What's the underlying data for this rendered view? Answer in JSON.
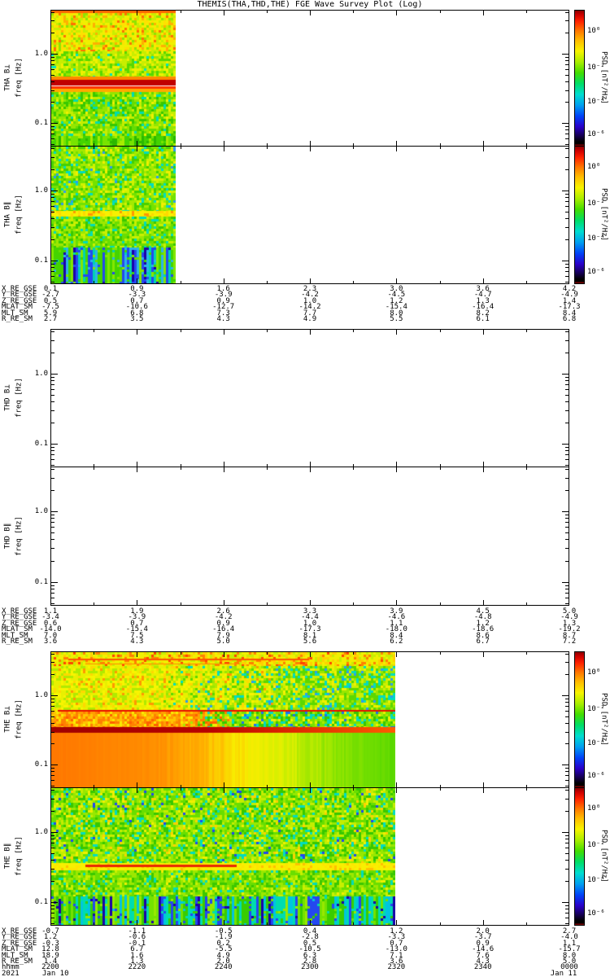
{
  "chart_data": {
    "type": "spectrogram",
    "title": "THEMIS(THA,THD,THE) FGE Wave Survey Plot (Log)",
    "ylabel": "freq [Hz]",
    "yscale": "log",
    "ylim": [
      0.047,
      4.2
    ],
    "ytick_major": [
      {
        "label": "1.0",
        "freq": 1.0
      },
      {
        "label": "0.1",
        "freq": 0.1
      }
    ],
    "ytick_minor_freqs": [
      4,
      3,
      2,
      0.9,
      0.8,
      0.7,
      0.6,
      0.5,
      0.4,
      0.3,
      0.2,
      0.09,
      0.08,
      0.07,
      0.06,
      0.05
    ],
    "colorbar": {
      "label": "PSD [nT²/Hz]",
      "ticks": [
        "10⁰",
        "10⁻²",
        "10⁻⁴",
        "10⁻⁶"
      ]
    },
    "panels": [
      {
        "id": "tha-bperp",
        "label": "THA B⊥",
        "ylabel": "freq [Hz]",
        "data_extent": 0.241,
        "colorbar": true,
        "zones": [
          {
            "y0": 0.0,
            "y1": 0.3,
            "type": "speckle",
            "colors": [
              "#f0f000",
              "#ffe000",
              "#c8ee00",
              "#ffb000",
              "#90e400",
              "#ff7000"
            ],
            "weights": [
              30,
              20,
              20,
              12,
              12,
              6
            ]
          },
          {
            "y0": 0.3,
            "y1": 0.49,
            "type": "speckle",
            "colors": [
              "#c8ee00",
              "#9ae600",
              "#f0f000",
              "#58d800",
              "#00e4c0"
            ],
            "weights": [
              28,
              26,
              22,
              18,
              6
            ]
          },
          {
            "y0": 0.6,
            "y1": 0.93,
            "type": "speckle",
            "colors": [
              "#66dc00",
              "#94e600",
              "#c4ee00",
              "#38c800",
              "#00dcb0",
              "#f0f000"
            ],
            "weights": [
              24,
              22,
              20,
              18,
              10,
              6
            ]
          },
          {
            "y0": 0.93,
            "y1": 1.0,
            "type": "stripes",
            "colors": [
              "#44d400",
              "#78e400",
              "#a8ec00",
              "#2cb800"
            ],
            "weights": [
              30,
              30,
              20,
              20
            ]
          }
        ],
        "features": [
          {
            "type": "hline",
            "y": 0.0,
            "h": 0.018,
            "x0": 0,
            "x1": 1,
            "color": "#ff6600"
          },
          {
            "type": "hline",
            "y": 0.49,
            "h": 0.028,
            "x0": 0,
            "x1": 1,
            "color": "#ff8800"
          },
          {
            "type": "hline",
            "y": 0.515,
            "h": 0.045,
            "x0": 0,
            "x1": 1,
            "color": "#c00000"
          },
          {
            "type": "hline",
            "y": 0.558,
            "h": 0.018,
            "x0": 0,
            "x1": 1,
            "color": "#ff3300"
          },
          {
            "type": "hline",
            "y": 0.576,
            "h": 0.026,
            "x0": 0,
            "x1": 1,
            "color": "#ffaa00"
          }
        ]
      },
      {
        "id": "tha-bpar",
        "label": "THA B∥",
        "ylabel": "freq [Hz]",
        "data_extent": 0.241,
        "colorbar": true,
        "zones": [
          {
            "y0": 0.0,
            "y1": 0.47,
            "type": "speckle",
            "colors": [
              "#74e200",
              "#a4ea00",
              "#d0f200",
              "#46d000",
              "#00dcc0",
              "#f0f000",
              "#2c9cf0"
            ],
            "weights": [
              24,
              24,
              16,
              18,
              10,
              6,
              2
            ]
          },
          {
            "y0": 0.47,
            "y1": 0.51,
            "type": "speckle",
            "colors": [
              "#f8f000",
              "#ffd800",
              "#ff9800"
            ],
            "weights": [
              62,
              24,
              14
            ]
          },
          {
            "y0": 0.51,
            "y1": 0.74,
            "type": "speckle",
            "colors": [
              "#6ade00",
              "#9ce800",
              "#c8f000",
              "#3cc800",
              "#00dcb8"
            ],
            "weights": [
              26,
              24,
              18,
              22,
              10
            ]
          },
          {
            "y0": 0.74,
            "y1": 1.0,
            "type": "stripes",
            "colors": [
              "#2cb4e8",
              "#2448f0",
              "#44d400",
              "#00d4b0",
              "#84e600",
              "#1c00a8",
              "#68dc00"
            ],
            "weights": [
              14,
              18,
              24,
              12,
              14,
              8,
              10
            ]
          }
        ],
        "features": []
      },
      {
        "id": "thd-bperp",
        "label": "THD B⊥",
        "ylabel": "freq [Hz]",
        "data_extent": 0,
        "colorbar": false,
        "zones": [],
        "features": []
      },
      {
        "id": "thd-bpar",
        "label": "THD B∥",
        "ylabel": "freq [Hz]",
        "data_extent": 0,
        "colorbar": false,
        "zones": [],
        "features": []
      },
      {
        "id": "the-bperp",
        "label": "THE B⊥",
        "ylabel": "freq [Hz]",
        "data_extent": 0.665,
        "colorbar": true,
        "zones": [
          {
            "y0": 0.0,
            "y1": 0.1,
            "type": "speckle",
            "colors": [
              "#f0f000",
              "#ffd000",
              "#c8ee00",
              "#ff8000",
              "#ff4400"
            ],
            "weights": [
              40,
              24,
              18,
              12,
              6
            ]
          },
          {
            "y0": 0.1,
            "y1": 0.44,
            "type": "speckle",
            "colors": [
              "#e8f000",
              "#f8f400",
              "#b0ea00",
              "#ffd800",
              "#ff9800"
            ],
            "weights": [
              30,
              24,
              26,
              14,
              6
            ],
            "colors2": [
              "#5cd800",
              "#9ae600",
              "#00dcc0",
              "#ccf000",
              "#f0f000",
              "#2c9cf0"
            ],
            "weights2": [
              28,
              24,
              14,
              20,
              10,
              4
            ],
            "blend": [
              0.3,
              0.75
            ]
          },
          {
            "y0": 0.44,
            "y1": 0.556,
            "type": "speckle",
            "colors": [
              "#ffa000",
              "#ff8000",
              "#ffc400",
              "#f8ec00",
              "#ff6000"
            ],
            "weights": [
              30,
              24,
              22,
              16,
              8
            ],
            "colors2": [
              "#78e200",
              "#a8ea00",
              "#00dcc0",
              "#f0f000",
              "#38c800",
              "#1c70f0"
            ],
            "weights2": [
              26,
              22,
              14,
              12,
              22,
              4
            ],
            "blend": [
              0.38,
              0.55
            ]
          },
          {
            "y0": 0.596,
            "y1": 1.0,
            "type": "xgrad",
            "stops": [
              [
                "#ff7800",
                0
              ],
              [
                "#ff8c00",
                0.28
              ],
              [
                "#ffb400",
                0.44
              ],
              [
                "#f8ec00",
                0.56
              ],
              [
                "#d8f000",
                0.68
              ],
              [
                "#8ce400",
                0.82
              ],
              [
                "#58d800",
                1
              ]
            ]
          }
        ],
        "features": [
          {
            "type": "hline",
            "y": 0.05,
            "h": 0.01,
            "x0": 0.05,
            "x1": 0.75,
            "color": "#ff5500"
          },
          {
            "type": "hline",
            "y": 0.085,
            "h": 0.008,
            "x0": 0.1,
            "x1": 0.55,
            "color": "#ff8800"
          },
          {
            "type": "hline",
            "y": 0.425,
            "h": 0.014,
            "x0": 0.02,
            "x1": 1,
            "color": "#e81000"
          },
          {
            "type": "hband",
            "y": 0.556,
            "h": 0.04,
            "stops": [
              [
                "#a00000",
                0
              ],
              [
                "#b80000",
                0.45
              ],
              [
                "#e02800",
                0.7
              ],
              [
                "#ff5c00",
                1
              ]
            ]
          }
        ]
      },
      {
        "id": "the-bpar",
        "label": "THE B∥",
        "ylabel": "freq [Hz]",
        "data_extent": 0.665,
        "colorbar": true,
        "zones": [
          {
            "y0": 0.0,
            "y1": 0.55,
            "type": "speckle",
            "colors": [
              "#68de00",
              "#98e800",
              "#c4ee00",
              "#38c800",
              "#00dcc0",
              "#f0f000",
              "#ffd000",
              "#2048f0"
            ],
            "weights": [
              23,
              22,
              18,
              17,
              10,
              7,
              3,
              2
            ]
          },
          {
            "y0": 0.55,
            "y1": 0.6,
            "type": "speckle",
            "colors": [
              "#f8f000",
              "#ffe400",
              "#ffc000"
            ],
            "weights": [
              64,
              24,
              12
            ]
          },
          {
            "y0": 0.6,
            "y1": 0.79,
            "type": "speckle",
            "colors": [
              "#6ade00",
              "#9ce800",
              "#c8f000",
              "#3cc800",
              "#00dcb8",
              "#f0f000"
            ],
            "weights": [
              26,
              24,
              16,
              22,
              8,
              4
            ]
          },
          {
            "y0": 0.79,
            "y1": 1.0,
            "type": "stripes",
            "colors": [
              "#38cc00",
              "#00c4e0",
              "#2448f0",
              "#74e200",
              "#00dcb0",
              "#1c00a8",
              "#98e800"
            ],
            "weights": [
              22,
              13,
              16,
              15,
              13,
              8,
              13
            ]
          }
        ],
        "features": [
          {
            "type": "hline",
            "y": 0.562,
            "h": 0.02,
            "x0": 0.1,
            "x1": 0.54,
            "color": "#e82800"
          }
        ]
      }
    ],
    "ephemeris_blocks": [
      {
        "rows": [
          {
            "label": "X_RE_GSE",
            "values": [
              "0.1",
              "0.9",
              "1.6",
              "2.3",
              "3.0",
              "3.6",
              "4.2"
            ]
          },
          {
            "label": "Y_RE_GSE",
            "values": [
              "-2.7",
              "-3.3",
              "-3.9",
              "-4.2",
              "-4.5",
              "-4.7",
              "-4.9"
            ]
          },
          {
            "label": "Z_RE_GSE",
            "values": [
              "0.5",
              "0.7",
              "0.9",
              "1.0",
              "1.2",
              "1.3",
              "1.4"
            ]
          },
          {
            "label": "MLAT_SM",
            "values": [
              "-7.5",
              "-10.6",
              "-12.7",
              "-14.2",
              "-15.4",
              "-16.4",
              "-17.3"
            ]
          },
          {
            "label": "MLT_SM",
            "values": [
              "5.9",
              "6.8",
              "7.3",
              "7.7",
              "8.0",
              "8.2",
              "8.4"
            ]
          },
          {
            "label": "R_RE_SM",
            "values": [
              "2.7",
              "3.5",
              "4.3",
              "4.9",
              "5.5",
              "6.1",
              "6.8"
            ]
          }
        ]
      },
      {
        "rows": [
          {
            "label": "X_RE_GSE",
            "values": [
              "1.1",
              "1.9",
              "2.6",
              "3.3",
              "3.9",
              "4.5",
              "5.0"
            ]
          },
          {
            "label": "Y_RE_GSE",
            "values": [
              "-3.4",
              "-3.9",
              "-4.2",
              "-4.4",
              "-4.6",
              "-4.8",
              "-4.9"
            ]
          },
          {
            "label": "Z_RE_GSE",
            "values": [
              "0.6",
              "0.7",
              "0.9",
              "1.0",
              "1.1",
              "1.2",
              "1.3"
            ]
          },
          {
            "label": "MLAT_SM",
            "values": [
              "-14.0",
              "-15.4",
              "-16.4",
              "-17.3",
              "-18.0",
              "-18.6",
              "-19.2"
            ]
          },
          {
            "label": "MLT_SM",
            "values": [
              "7.0",
              "7.5",
              "7.9",
              "8.1",
              "8.4",
              "8.6",
              "8.7"
            ]
          },
          {
            "label": "R_RE_SM",
            "values": [
              "3.6",
              "4.3",
              "5.0",
              "5.6",
              "6.2",
              "6.7",
              "7.2"
            ]
          }
        ]
      },
      {
        "rows": [
          {
            "label": "X_RE_GSE",
            "values": [
              "-0.7",
              "-1.1",
              "-0.5",
              "0.4",
              "1.2",
              "2.0",
              "2.7"
            ]
          },
          {
            "label": "Y_RE_GSE",
            "values": [
              "1.2",
              "-0.6",
              "-1.9",
              "-2.8",
              "-3.3",
              "-3.7",
              "-4.0"
            ]
          },
          {
            "label": "Z_RE_GSE",
            "values": [
              "-0.3",
              "-0.1",
              "0.2",
              "0.5",
              "0.7",
              "0.9",
              "1.1"
            ]
          },
          {
            "label": "MLAT_SM",
            "values": [
              "12.8",
              "6.7",
              "-5.5",
              "-10.5",
              "-13.0",
              "-14.6",
              "-15.7"
            ]
          },
          {
            "label": "MLT_SM",
            "values": [
              "18.9",
              "1.6",
              "4.9",
              "6.3",
              "7.1",
              "7.6",
              "8.0"
            ]
          },
          {
            "label": "R_RE_SM",
            "values": [
              "1.4",
              "1.3",
              "2.0",
              "2.8",
              "3.6",
              "4.3",
              "5.0"
            ]
          },
          {
            "label": "hhmm",
            "values": [
              "2200",
              "2220",
              "2240",
              "2300",
              "2320",
              "2340",
              "0000"
            ]
          }
        ],
        "year_row": {
          "label": "2021",
          "start": "Jan 10",
          "end": "Jan 11"
        }
      }
    ]
  }
}
